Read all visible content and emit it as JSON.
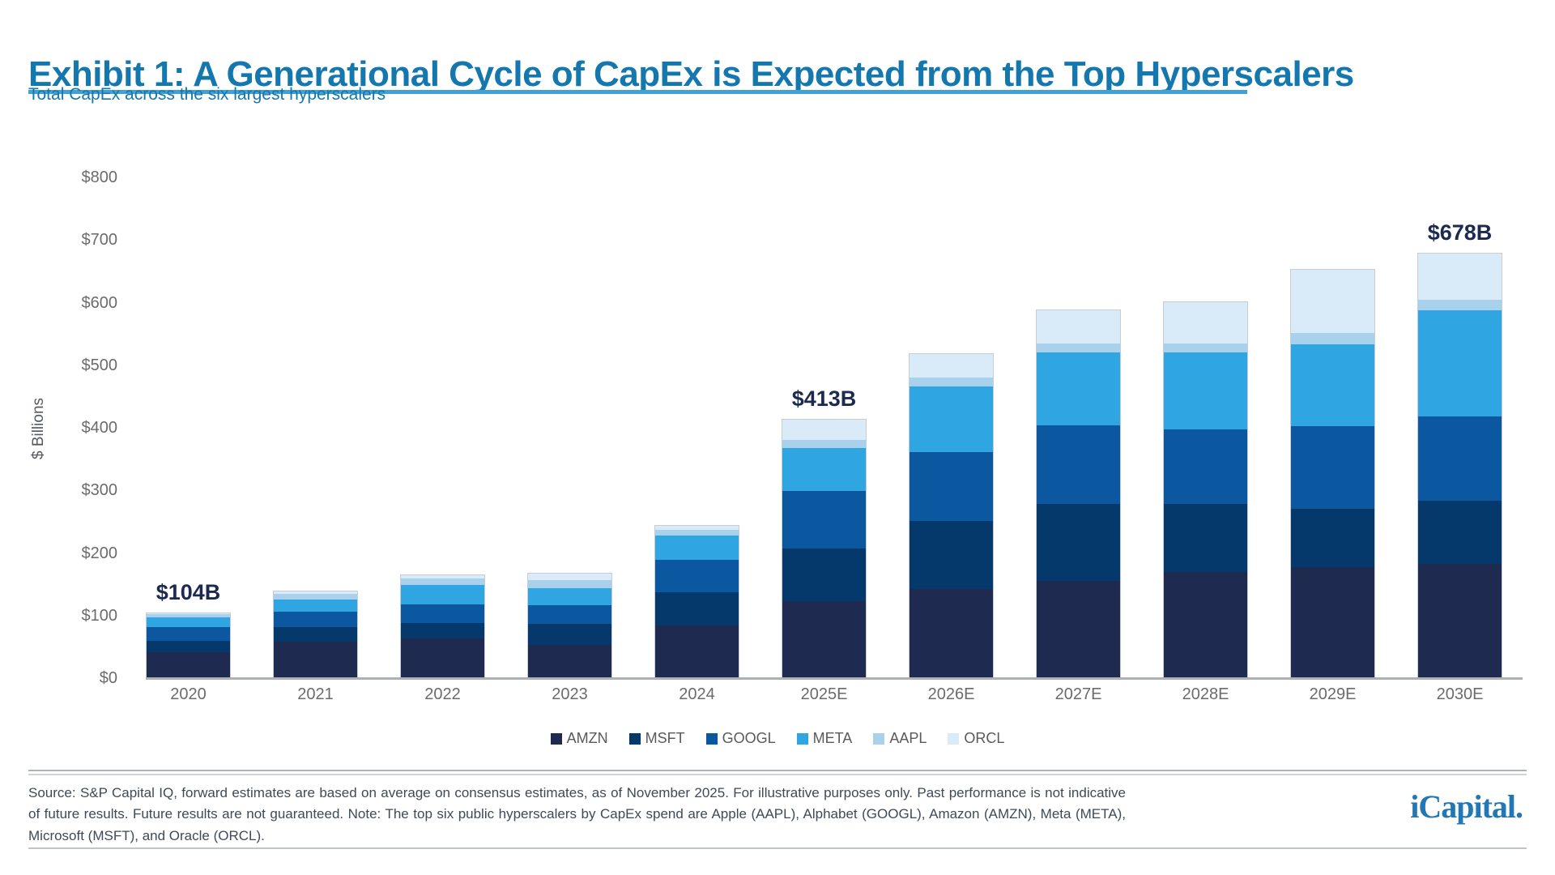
{
  "header": {
    "title": "Exhibit 1: A Generational Cycle of CapEx is Expected from the Top Hyperscalers"
  },
  "chart_data": {
    "type": "bar",
    "stacked": true,
    "title": "Total CapEx across the six largest hyperscalers",
    "ylabel": "$ Billions",
    "ylim": [
      0,
      800
    ],
    "grid": false,
    "legend_position": "bottom",
    "yticks": [
      {
        "label": "$0",
        "value": 0
      },
      {
        "label": "$100",
        "value": 100
      },
      {
        "label": "$200",
        "value": 200
      },
      {
        "label": "$300",
        "value": 300
      },
      {
        "label": "$400",
        "value": 400
      },
      {
        "label": "$500",
        "value": 500
      },
      {
        "label": "$600",
        "value": 600
      },
      {
        "label": "$700",
        "value": 700
      },
      {
        "label": "$800",
        "value": 800
      }
    ],
    "categories": [
      "2020",
      "2021",
      "2022",
      "2023",
      "2024",
      "2025E",
      "2026E",
      "2027E",
      "2028E",
      "2029E",
      "2030E"
    ],
    "series": [
      {
        "name": "AMZN",
        "color": "#1E2A50",
        "values": [
          40,
          58,
          62,
          52,
          83,
          122,
          142,
          154,
          168,
          176,
          182
        ]
      },
      {
        "name": "MSFT",
        "color": "#05396B",
        "values": [
          19,
          23,
          25,
          34,
          54,
          84,
          108,
          123,
          109,
          94,
          101
        ]
      },
      {
        "name": "GOOGL",
        "color": "#0B57A0",
        "values": [
          22,
          25,
          30,
          30,
          52,
          93,
          111,
          127,
          120,
          132,
          135
        ]
      },
      {
        "name": "META",
        "color": "#2FA5E2",
        "values": [
          16,
          19,
          32,
          28,
          39,
          68,
          105,
          116,
          123,
          131,
          169
        ]
      },
      {
        "name": "AAPL",
        "color": "#A9D1EC",
        "values": [
          5,
          10,
          10,
          12,
          9,
          13,
          14,
          15,
          14,
          18,
          17
        ]
      },
      {
        "name": "ORCL",
        "color": "#D9EBF8",
        "values": [
          2,
          4,
          6,
          11,
          7,
          33,
          38,
          53,
          67,
          101,
          74
        ]
      }
    ],
    "totals": [
      104,
      139,
      165,
      167,
      244,
      413,
      518,
      588,
      601,
      652,
      678
    ],
    "annotations": [
      {
        "category": "2020",
        "text": "$104B"
      },
      {
        "category": "2025E",
        "text": "$413B"
      },
      {
        "category": "2030E",
        "text": "$678B"
      }
    ]
  },
  "footer": {
    "source": "Source: S&P Capital IQ, forward estimates are based on average on consensus estimates, as of November 2025. For illustrative purposes only. Past performance is not indicative of future results. Future results are not guaranteed. Note: The top six public hyperscalers by CapEx spend are Apple (AAPL), Alphabet (GOOGL), Amazon (AMZN), Meta (META), Microsoft (MSFT), and Oracle (ORCL).",
    "logo": "iCapital."
  }
}
